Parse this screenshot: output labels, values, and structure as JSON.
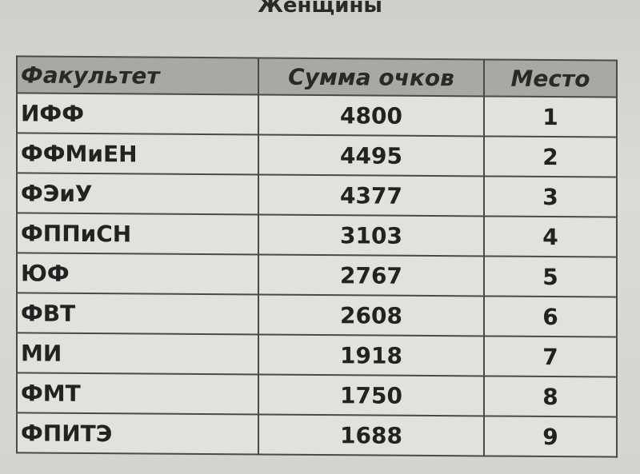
{
  "title": "Женщины",
  "table": {
    "headers": [
      "Факультет",
      "Сумма очков",
      "Место"
    ],
    "rows": [
      [
        "ИФФ",
        "4800",
        "1"
      ],
      [
        "ФФМиЕН",
        "4495",
        "2"
      ],
      [
        "ФЭиУ",
        "4377",
        "3"
      ],
      [
        "ФППиСН",
        "3103",
        "4"
      ],
      [
        "ЮФ",
        "2767",
        "5"
      ],
      [
        "ФВТ",
        "2608",
        "6"
      ],
      [
        "МИ",
        "1918",
        "7"
      ],
      [
        "ФМТ",
        "1750",
        "8"
      ],
      [
        "ФПИТЭ",
        "1688",
        "9"
      ]
    ]
  }
}
